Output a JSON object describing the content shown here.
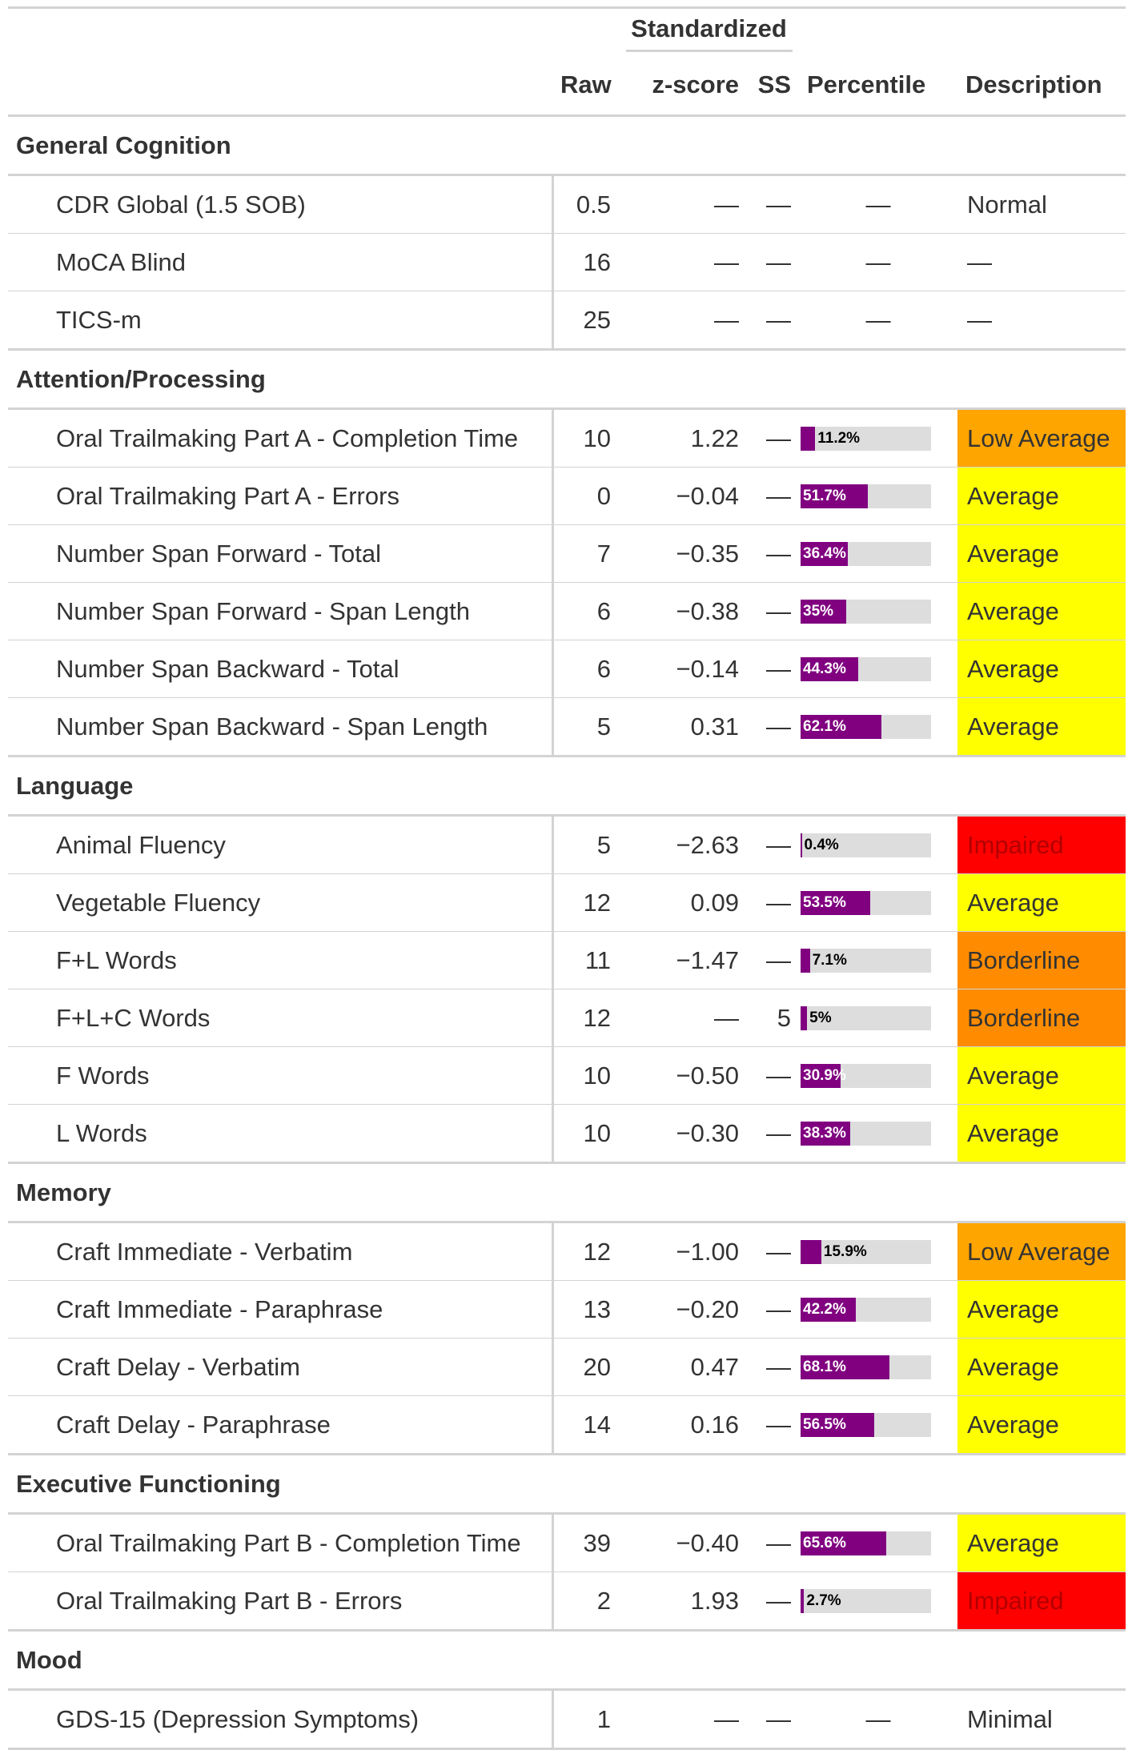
{
  "header": {
    "spanner": "Standardized",
    "raw": "Raw",
    "zscore": "z-score",
    "ss": "SS",
    "percentile": "Percentile",
    "description": "Description"
  },
  "colors": {
    "bar": "#800080",
    "track": "#dddddd",
    "Impaired": "#ff0000",
    "Borderline": "#ff8c00",
    "Low Average": "#ffa500",
    "Average": "#ffff00"
  },
  "groups": [
    {
      "label": "General Cognition",
      "rows": [
        {
          "name": "CDR Global (1.5 SOB)",
          "raw": "0.5",
          "z": "—",
          "ss": "—",
          "pct_text": "—",
          "desc": "Normal"
        },
        {
          "name": "MoCA Blind",
          "raw": "16",
          "z": "—",
          "ss": "—",
          "pct_text": "—",
          "desc": "—"
        },
        {
          "name": "TICS-m",
          "raw": "25",
          "z": "—",
          "ss": "—",
          "pct_text": "—",
          "desc": "—"
        }
      ]
    },
    {
      "label": "Attention/Processing",
      "rows": [
        {
          "name": "Oral Trailmaking Part A - Completion Time",
          "raw": "10",
          "z": "1.22",
          "ss": "—",
          "pct": 11.2,
          "pct_label": "11.2%",
          "desc": "Low Average"
        },
        {
          "name": "Oral Trailmaking Part A - Errors",
          "raw": "0",
          "z": "−0.04",
          "ss": "—",
          "pct": 51.7,
          "pct_label": "51.7%",
          "desc": "Average"
        },
        {
          "name": "Number Span Forward - Total",
          "raw": "7",
          "z": "−0.35",
          "ss": "—",
          "pct": 36.4,
          "pct_label": "36.4%",
          "desc": "Average"
        },
        {
          "name": "Number Span Forward - Span Length",
          "raw": "6",
          "z": "−0.38",
          "ss": "—",
          "pct": 35,
          "pct_label": "35%",
          "desc": "Average"
        },
        {
          "name": "Number Span Backward - Total",
          "raw": "6",
          "z": "−0.14",
          "ss": "—",
          "pct": 44.3,
          "pct_label": "44.3%",
          "desc": "Average"
        },
        {
          "name": "Number Span Backward - Span Length",
          "raw": "5",
          "z": "0.31",
          "ss": "—",
          "pct": 62.1,
          "pct_label": "62.1%",
          "desc": "Average"
        }
      ]
    },
    {
      "label": "Language",
      "rows": [
        {
          "name": "Animal Fluency",
          "raw": "5",
          "z": "−2.63",
          "ss": "—",
          "pct": 0.4,
          "pct_label": "0.4%",
          "desc": "Impaired"
        },
        {
          "name": "Vegetable Fluency",
          "raw": "12",
          "z": "0.09",
          "ss": "—",
          "pct": 53.5,
          "pct_label": "53.5%",
          "desc": "Average"
        },
        {
          "name": "F+L Words",
          "raw": "11",
          "z": "−1.47",
          "ss": "—",
          "pct": 7.1,
          "pct_label": "7.1%",
          "desc": "Borderline"
        },
        {
          "name": "F+L+C Words",
          "raw": "12",
          "z": "—",
          "ss": "5",
          "pct": 5,
          "pct_label": "5%",
          "desc": "Borderline"
        },
        {
          "name": "F Words",
          "raw": "10",
          "z": "−0.50",
          "ss": "—",
          "pct": 30.9,
          "pct_label": "30.9%",
          "desc": "Average"
        },
        {
          "name": "L Words",
          "raw": "10",
          "z": "−0.30",
          "ss": "—",
          "pct": 38.3,
          "pct_label": "38.3%",
          "desc": "Average"
        }
      ]
    },
    {
      "label": "Memory",
      "rows": [
        {
          "name": "Craft Immediate - Verbatim",
          "raw": "12",
          "z": "−1.00",
          "ss": "—",
          "pct": 15.9,
          "pct_label": "15.9%",
          "desc": "Low Average"
        },
        {
          "name": "Craft Immediate - Paraphrase",
          "raw": "13",
          "z": "−0.20",
          "ss": "—",
          "pct": 42.2,
          "pct_label": "42.2%",
          "desc": "Average"
        },
        {
          "name": "Craft Delay - Verbatim",
          "raw": "20",
          "z": "0.47",
          "ss": "—",
          "pct": 68.1,
          "pct_label": "68.1%",
          "desc": "Average"
        },
        {
          "name": "Craft Delay - Paraphrase",
          "raw": "14",
          "z": "0.16",
          "ss": "—",
          "pct": 56.5,
          "pct_label": "56.5%",
          "desc": "Average"
        }
      ]
    },
    {
      "label": "Executive Functioning",
      "rows": [
        {
          "name": "Oral Trailmaking Part B - Completion Time",
          "raw": "39",
          "z": "−0.40",
          "ss": "—",
          "pct": 65.6,
          "pct_label": "65.6%",
          "desc": "Average"
        },
        {
          "name": "Oral Trailmaking Part B - Errors",
          "raw": "2",
          "z": "1.93",
          "ss": "—",
          "pct": 2.7,
          "pct_label": "2.7%",
          "desc": "Impaired"
        }
      ]
    },
    {
      "label": "Mood",
      "rows": [
        {
          "name": "GDS-15 (Depression Symptoms)",
          "raw": "1",
          "z": "—",
          "ss": "—",
          "pct_text": "—",
          "desc": "Minimal"
        }
      ]
    }
  ]
}
